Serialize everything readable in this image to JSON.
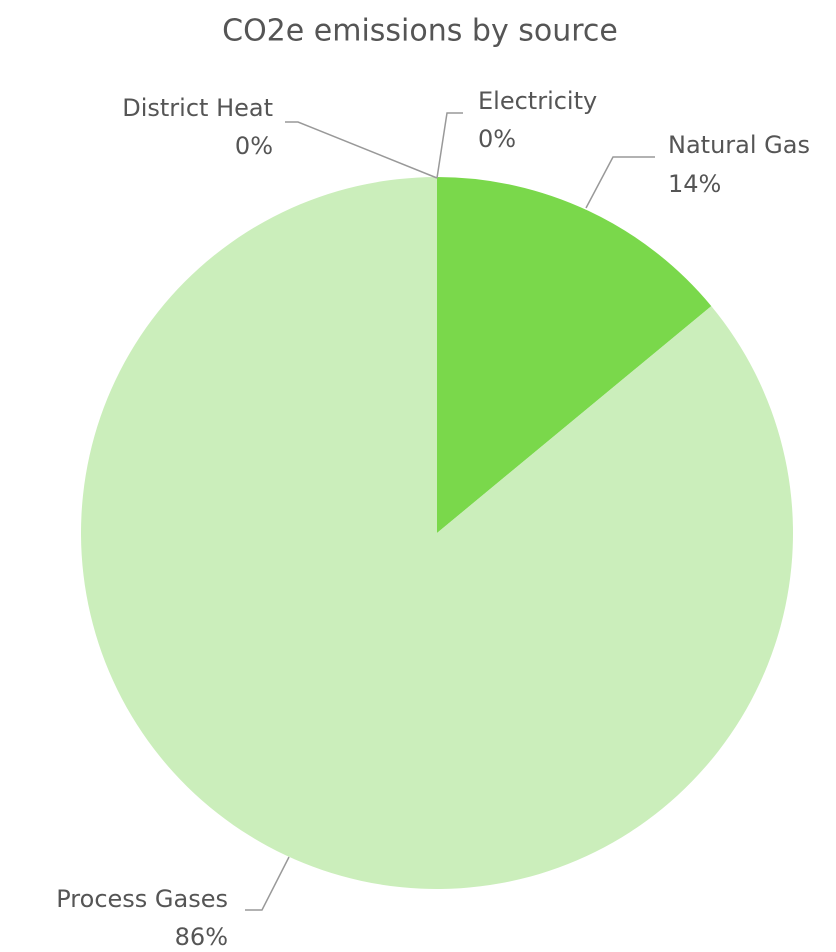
{
  "chart_data": {
    "type": "pie",
    "title": "CO2e emissions by source",
    "categories": [
      "Electricity",
      "Natural Gas",
      "Process Gases",
      "District Heat"
    ],
    "values": [
      0,
      14,
      86,
      0
    ],
    "value_labels": [
      "0%",
      "14%",
      "86%",
      "0%"
    ],
    "colors": [
      "#3e8f2a",
      "#7ad84b",
      "#cbeebb",
      "#2e6b1f"
    ]
  }
}
